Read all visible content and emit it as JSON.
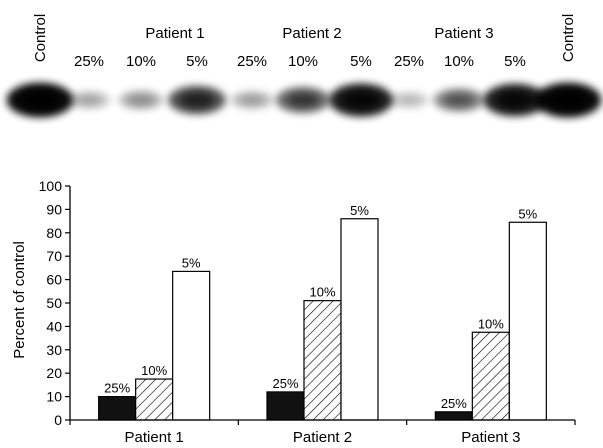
{
  "blot": {
    "patients": [
      "Patient 1",
      "Patient 2",
      "Patient 3"
    ],
    "lanes": [
      "Control",
      "25%",
      "10%",
      "5%",
      "25%",
      "10%",
      "5%",
      "25%",
      "10%",
      "5%",
      "Control"
    ],
    "band_intensity": [
      0.95,
      0.1,
      0.17,
      0.63,
      0.12,
      0.51,
      0.86,
      0.04,
      0.38,
      0.84,
      0.95
    ]
  },
  "chart_data": {
    "type": "bar",
    "categories": [
      "Patient 1",
      "Patient 2",
      "Patient 3"
    ],
    "series": [
      {
        "name": "25%",
        "values": [
          10,
          12,
          3.5
        ],
        "fill": "#111111",
        "pattern": "solid"
      },
      {
        "name": "10%",
        "values": [
          17.5,
          51,
          37.5
        ],
        "fill": "#ffffff",
        "pattern": "hatch"
      },
      {
        "name": "5%",
        "values": [
          63.5,
          86,
          84.5
        ],
        "fill": "#ffffff",
        "pattern": "none"
      }
    ],
    "xlabel": "",
    "ylabel": "Percent of control",
    "ylim": [
      0,
      100
    ],
    "yticks": [
      0,
      10,
      20,
      30,
      40,
      50,
      60,
      70,
      80,
      90,
      100
    ],
    "grid": false,
    "legend": "none"
  }
}
